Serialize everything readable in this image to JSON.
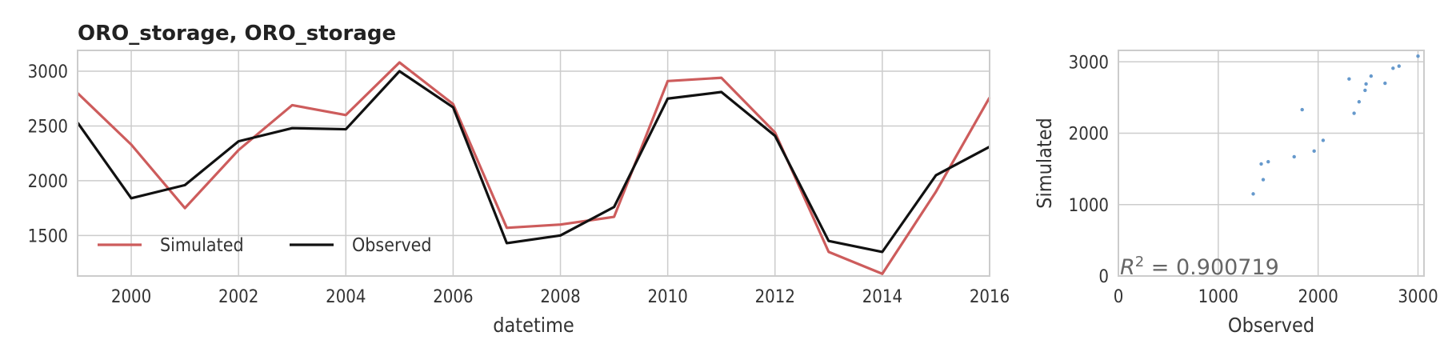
{
  "chart_data": [
    {
      "type": "line",
      "title": "ORO_storage, ORO_storage",
      "xlabel": "datetime",
      "ylabel": "",
      "xlim": [
        1999,
        2016
      ],
      "ylim": [
        1130,
        3190
      ],
      "x_ticks": [
        "2000",
        "2002",
        "2004",
        "2006",
        "2008",
        "2010",
        "2012",
        "2014",
        "2016"
      ],
      "y_ticks": [
        "1500",
        "2000",
        "2500",
        "3000"
      ],
      "grid": true,
      "legend_position": "lower-left",
      "x": [
        1999,
        2000,
        2001,
        2002,
        2003,
        2004,
        2005,
        2006,
        2007,
        2008,
        2009,
        2010,
        2011,
        2012,
        2013,
        2014,
        2015,
        2016
      ],
      "series": [
        {
          "name": "Simulated",
          "color": "#cd5c5c",
          "values": [
            2800,
            2330,
            1750,
            2280,
            2690,
            2600,
            3080,
            2700,
            1570,
            1600,
            1670,
            2910,
            2940,
            2440,
            1350,
            1150,
            1900,
            2760
          ]
        },
        {
          "name": "Observed",
          "color": "#111111",
          "values": [
            2530,
            1840,
            1960,
            2360,
            2480,
            2470,
            3000,
            2670,
            1430,
            1500,
            1760,
            2750,
            2810,
            2410,
            1450,
            1350,
            2050,
            2310
          ]
        }
      ]
    },
    {
      "type": "scatter",
      "title": "",
      "xlabel": "Observed",
      "ylabel": "Simulated",
      "xlim": [
        0,
        3060
      ],
      "ylim": [
        0,
        3160
      ],
      "x_ticks": [
        "0",
        "1000",
        "2000",
        "3000"
      ],
      "y_ticks": [
        "0",
        "1000",
        "2000",
        "3000"
      ],
      "grid": true,
      "point_color": "#6699cc",
      "annotation": "R^2 = 0.900719",
      "annotation_prefix": "R",
      "annotation_exp": "2",
      "annotation_rest": " = 0.900719",
      "points": [
        [
          1350,
          1150
        ],
        [
          1430,
          1570
        ],
        [
          1450,
          1350
        ],
        [
          1500,
          1600
        ],
        [
          1760,
          1670
        ],
        [
          1840,
          2330
        ],
        [
          1960,
          1750
        ],
        [
          2050,
          1900
        ],
        [
          2310,
          2760
        ],
        [
          2360,
          2280
        ],
        [
          2410,
          2440
        ],
        [
          2470,
          2600
        ],
        [
          2480,
          2690
        ],
        [
          2530,
          2800
        ],
        [
          2670,
          2700
        ],
        [
          2750,
          2910
        ],
        [
          2810,
          2940
        ],
        [
          3000,
          3080
        ]
      ]
    }
  ]
}
